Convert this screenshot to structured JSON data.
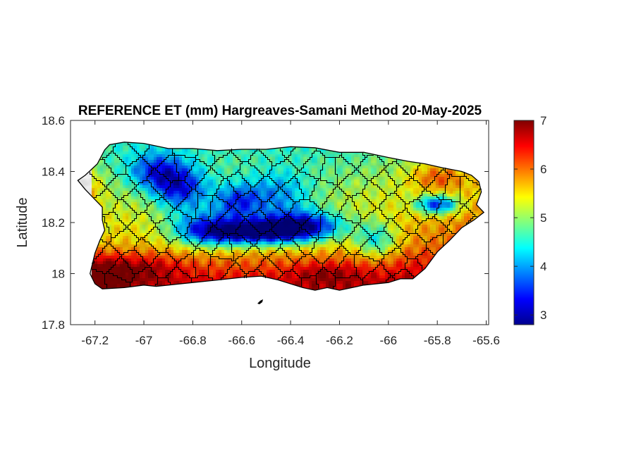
{
  "figure": {
    "title": "REFERENCE ET (mm) Hargreaves-Samani Method  20-May-2025",
    "xlabel": "Longitude",
    "ylabel": "Latitude"
  },
  "map": {
    "region": "Puerto Rico",
    "xlim": [
      -67.3,
      -65.59
    ],
    "ylim": [
      17.8,
      18.6
    ],
    "xticks": [
      -67.2,
      -67,
      -66.8,
      -66.6,
      -66.4,
      -66.2,
      -66,
      -65.8,
      -65.6
    ],
    "xtick_labels": [
      "-67.2",
      "-67",
      "-66.8",
      "-66.6",
      "-66.4",
      "-66.2",
      "-66",
      "-65.8",
      "-65.6"
    ],
    "yticks": [
      17.8,
      18,
      18.2,
      18.4,
      18.6
    ],
    "ytick_labels": [
      "17.8",
      "18",
      "18.2",
      "18.4",
      "18.6"
    ],
    "colormap": "jet",
    "field_range": [
      2.8,
      7.0
    ],
    "municipality_borders": true,
    "border_color": "#000000"
  },
  "colorbar": {
    "range": [
      2.8,
      7.0
    ],
    "ticks": [
      3,
      4,
      5,
      6,
      7
    ],
    "tick_labels": [
      "3",
      "4",
      "5",
      "6",
      "7"
    ]
  }
}
